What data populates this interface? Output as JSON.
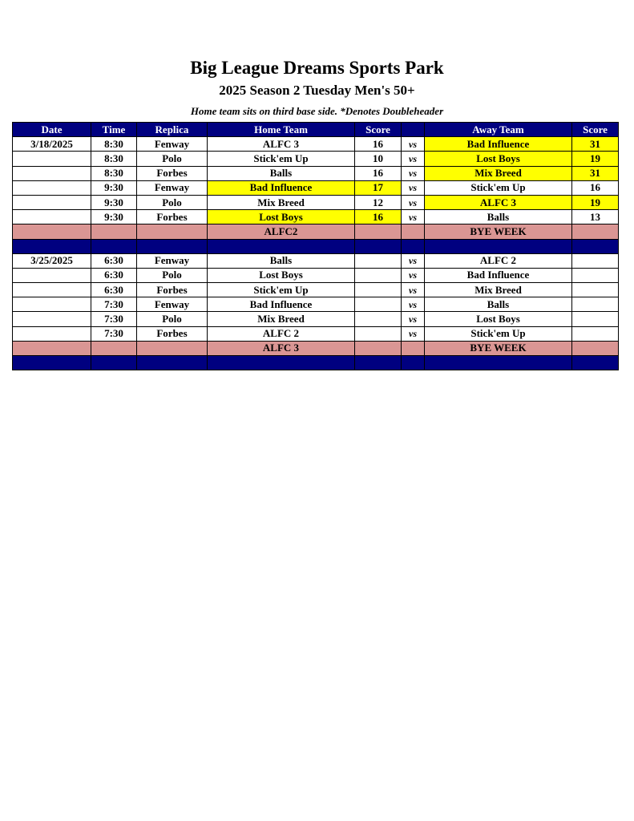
{
  "title": "Big League Dreams Sports Park",
  "subtitle": "2025 Season 2 Tuesday Men's 50+",
  "note": "Home team sits on third base side.  *Denotes Doubleheader",
  "colors": {
    "header": "#000080",
    "highlight": "#ffff00",
    "bye": "#da9694"
  },
  "headers": [
    "Date",
    "Time",
    "Replica",
    "Home Team",
    "Score",
    "",
    "Away Team",
    "Score"
  ],
  "rows": [
    {
      "type": "game",
      "cells": [
        "3/18/2025",
        "8:30",
        "Fenway",
        "ALFC 3",
        "16",
        "vs",
        "Bad Influence",
        "31"
      ],
      "hl": [
        6,
        7
      ]
    },
    {
      "type": "game",
      "cells": [
        "",
        "8:30",
        "Polo",
        "Stick'em Up",
        "10",
        "vs",
        "Lost Boys",
        "19"
      ],
      "hl": [
        6,
        7
      ]
    },
    {
      "type": "game",
      "cells": [
        "",
        "8:30",
        "Forbes",
        "Balls",
        "16",
        "vs",
        "Mix Breed",
        "31"
      ],
      "hl": [
        6,
        7
      ]
    },
    {
      "type": "game",
      "cells": [
        "",
        "9:30",
        "Fenway",
        "Bad Influence",
        "17",
        "vs",
        "Stick'em Up",
        "16"
      ],
      "hl": [
        3,
        4
      ]
    },
    {
      "type": "game",
      "cells": [
        "",
        "9:30",
        "Polo",
        "Mix Breed",
        "12",
        "vs",
        "ALFC 3",
        "19"
      ],
      "hl": [
        6,
        7
      ]
    },
    {
      "type": "game",
      "cells": [
        "",
        "9:30",
        "Forbes",
        "Lost Boys",
        "16",
        "vs",
        "Balls",
        "13"
      ],
      "hl": [
        3,
        4
      ]
    },
    {
      "type": "bye",
      "cells": [
        "",
        "",
        "",
        "ALFC2",
        "",
        "",
        "BYE WEEK",
        ""
      ],
      "hl": []
    },
    {
      "type": "blue",
      "cells": [
        "",
        "",
        "",
        "",
        "",
        "",
        "",
        ""
      ],
      "hl": []
    },
    {
      "type": "game",
      "cells": [
        "3/25/2025",
        "6:30",
        "Fenway",
        "Balls",
        "",
        "vs",
        "ALFC 2",
        ""
      ],
      "hl": []
    },
    {
      "type": "game",
      "cells": [
        "",
        "6:30",
        "Polo",
        "Lost Boys",
        "",
        "vs",
        "Bad Influence",
        ""
      ],
      "hl": []
    },
    {
      "type": "game",
      "cells": [
        "",
        "6:30",
        "Forbes",
        "Stick'em Up",
        "",
        "vs",
        "Mix Breed",
        ""
      ],
      "hl": []
    },
    {
      "type": "game",
      "cells": [
        "",
        "7:30",
        "Fenway",
        "Bad Influence",
        "",
        "vs",
        "Balls",
        ""
      ],
      "hl": []
    },
    {
      "type": "game",
      "cells": [
        "",
        "7:30",
        "Polo",
        "Mix Breed",
        "",
        "vs",
        "Lost Boys",
        ""
      ],
      "hl": []
    },
    {
      "type": "game",
      "cells": [
        "",
        "7:30",
        "Forbes",
        "ALFC 2",
        "",
        "vs",
        "Stick'em Up",
        ""
      ],
      "hl": []
    },
    {
      "type": "bye",
      "cells": [
        "",
        "",
        "",
        "ALFC 3",
        "",
        "",
        "BYE WEEK",
        ""
      ],
      "hl": []
    },
    {
      "type": "blue",
      "cells": [
        "",
        "",
        "",
        "",
        "",
        "",
        "",
        ""
      ],
      "hl": []
    }
  ]
}
